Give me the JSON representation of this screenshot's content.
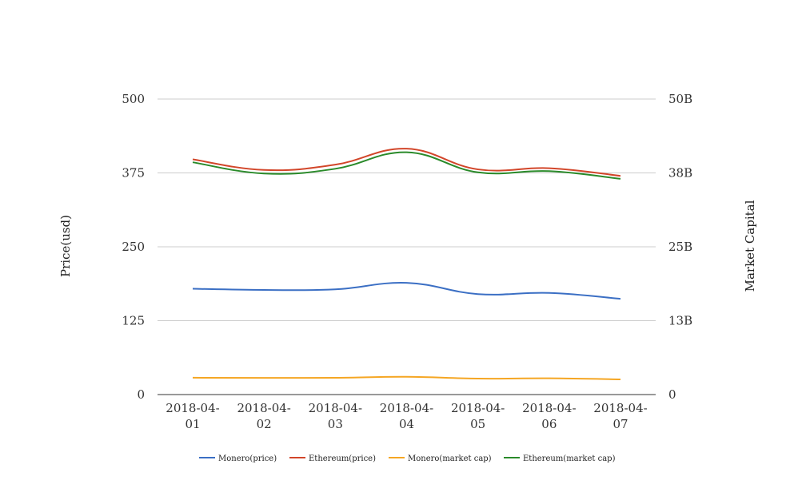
{
  "chart_data": {
    "type": "line",
    "categories": [
      "2018-04-01",
      "2018-04-02",
      "2018-04-03",
      "2018-04-04",
      "2018-04-05",
      "2018-04-06",
      "2018-04-07"
    ],
    "category_labels": [
      [
        "2018-04-",
        "01"
      ],
      [
        "2018-04-",
        "02"
      ],
      [
        "2018-04-",
        "03"
      ],
      [
        "2018-04-",
        "04"
      ],
      [
        "2018-04-",
        "05"
      ],
      [
        "2018-04-",
        "06"
      ],
      [
        "2018-04-",
        "07"
      ]
    ],
    "ylabel": "Price(usd)",
    "ylabel_right": "Market Capital",
    "ylim": [
      0,
      500
    ],
    "ylim_right": [
      0,
      50000000000
    ],
    "yticks": [
      "0",
      "125",
      "250",
      "375",
      "500"
    ],
    "yticks_right": [
      "0",
      "13B",
      "25B",
      "38B",
      "50B"
    ],
    "grid": true,
    "legend_position": "bottom",
    "series": [
      {
        "name": "Monero(price)",
        "axis": "left",
        "color": "#3b6fc4",
        "values": [
          179,
          177,
          178,
          189,
          170,
          172,
          162
        ]
      },
      {
        "name": "Ethereum(price)",
        "axis": "left",
        "color": "#d2462a",
        "values": [
          398,
          380,
          389,
          416,
          381,
          383,
          370
        ]
      },
      {
        "name": "Monero(market cap)",
        "axis": "right",
        "color": "#f5a623",
        "values": [
          2850000000,
          2820000000,
          2840000000,
          3000000000,
          2700000000,
          2750000000,
          2570000000
        ]
      },
      {
        "name": "Ethereum(market cap)",
        "axis": "right",
        "color": "#2a8a2a",
        "values": [
          39300000000,
          37400000000,
          38200000000,
          41000000000,
          37600000000,
          37800000000,
          36500000000
        ]
      }
    ]
  }
}
